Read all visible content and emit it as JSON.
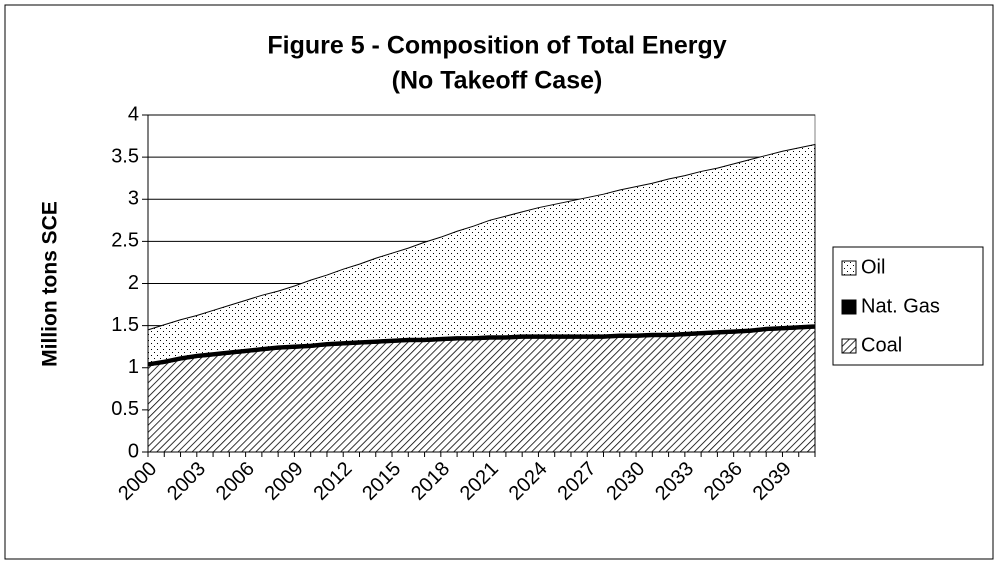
{
  "chart_data": {
    "type": "stacked-area",
    "title": "Figure 5 - Composition of Total Energy",
    "subtitle": "(No Takeoff Case)",
    "y_label": "Million tons SCE",
    "categories": [
      "2000",
      null,
      null,
      "2003",
      null,
      null,
      "2006",
      null,
      null,
      "2009",
      null,
      null,
      "2012",
      null,
      null,
      "2015",
      null,
      null,
      "2018",
      null,
      null,
      "2021",
      null,
      null,
      "2024",
      null,
      null,
      "2027",
      null,
      null,
      "2030",
      null,
      null,
      "2033",
      null,
      null,
      "2036",
      null,
      null,
      "2039",
      null,
      null
    ],
    "series": [
      {
        "name": "Coal",
        "color": "#000000",
        "values": [
          1.02,
          1.05,
          1.09,
          1.12,
          1.14,
          1.16,
          1.18,
          1.2,
          1.22,
          1.23,
          1.24,
          1.26,
          1.27,
          1.28,
          1.29,
          1.3,
          1.31,
          1.31,
          1.32,
          1.33,
          1.33,
          1.34,
          1.34,
          1.35,
          1.35,
          1.35,
          1.35,
          1.35,
          1.35,
          1.36,
          1.36,
          1.37,
          1.37,
          1.38,
          1.39,
          1.4,
          1.41,
          1.42,
          1.44,
          1.45,
          1.46,
          1.47
        ]
      },
      {
        "name": "Nat. Gas",
        "color": "#000000",
        "values": [
          0.04,
          0.04,
          0.04,
          0.04,
          0.04,
          0.04,
          0.04,
          0.04,
          0.04,
          0.04,
          0.04,
          0.04,
          0.04,
          0.04,
          0.04,
          0.04,
          0.04,
          0.04,
          0.04,
          0.04,
          0.04,
          0.04,
          0.04,
          0.04,
          0.04,
          0.04,
          0.04,
          0.04,
          0.04,
          0.04,
          0.04,
          0.04,
          0.04,
          0.04,
          0.04,
          0.04,
          0.04,
          0.04,
          0.04,
          0.04,
          0.04,
          0.04
        ]
      },
      {
        "name": "Oil",
        "color": "#000000",
        "values": [
          0.39,
          0.42,
          0.44,
          0.46,
          0.5,
          0.54,
          0.58,
          0.62,
          0.65,
          0.7,
          0.76,
          0.8,
          0.86,
          0.91,
          0.97,
          1.02,
          1.07,
          1.14,
          1.19,
          1.25,
          1.31,
          1.37,
          1.42,
          1.46,
          1.51,
          1.55,
          1.59,
          1.63,
          1.67,
          1.71,
          1.75,
          1.78,
          1.83,
          1.86,
          1.9,
          1.93,
          1.97,
          2.01,
          2.04,
          2.08,
          2.11,
          2.14
        ]
      }
    ],
    "ylim": [
      0,
      4
    ],
    "yticks": [
      0,
      0.5,
      1,
      1.5,
      2,
      2.5,
      3,
      3.5,
      4
    ],
    "grid": true,
    "legend": "right"
  }
}
